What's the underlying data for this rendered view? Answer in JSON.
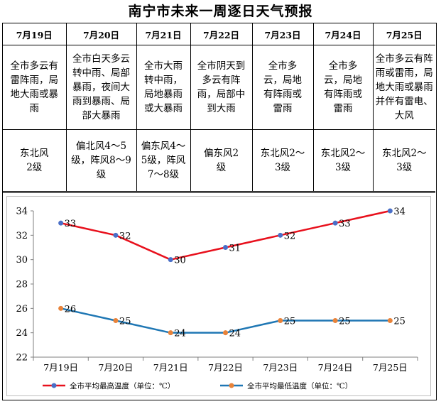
{
  "title": "南宁市未来一周逐日天气预报",
  "days": [
    {
      "date": "7月19日",
      "weather": "全市多云有雷阵雨，局地大雨或暴雨",
      "wind": "东北风2级"
    },
    {
      "date": "7月20日",
      "weather": "全市白天多云转中雨、局部暴雨，夜间大雨到暴雨、局部大暴雨",
      "wind": "偏北风4～5级，阵风8～9级"
    },
    {
      "date": "7月21日",
      "weather": "全市大雨转中雨，局地暴雨或大暴雨",
      "wind": "偏东风4～5级，阵风7～8级"
    },
    {
      "date": "7月22日",
      "weather": "全市阴天到多云有阵雨，局部中到大雨",
      "wind": "偏东风2级"
    },
    {
      "date": "7月23日",
      "weather": "全市多云，局地有阵雨或雷雨",
      "wind": "东北风2～3级"
    },
    {
      "date": "7月24日",
      "weather": "全市多云，局地有阵雨或雷雨",
      "wind": "东北风2～3级"
    },
    {
      "date": "7月25日",
      "weather": "全市多云有阵雨或雷雨，局地大雨或暴雨并伴有雷电、大风",
      "wind": "东北风2～3级"
    }
  ],
  "chart_data": {
    "type": "line",
    "categories": [
      "7月19日",
      "7月20日",
      "7月21日",
      "7月22日",
      "7月23日",
      "7月24日",
      "7月25日"
    ],
    "series": [
      {
        "name": "全市平均最高温度（单位：℃）",
        "values": [
          33,
          32,
          30,
          31,
          32,
          33,
          34
        ],
        "color": "#e8101c",
        "marker": "#4a6fc7"
      },
      {
        "name": "全市平均最低温度（单位：℃）",
        "values": [
          26,
          25,
          24,
          24,
          25,
          25,
          25
        ],
        "color": "#1f77b4",
        "marker": "#e8833a"
      }
    ],
    "ylim": [
      22,
      34
    ],
    "yticks": [
      22,
      24,
      26,
      28,
      30,
      32,
      34
    ],
    "title": "",
    "xlabel": "",
    "ylabel": "",
    "grid": false,
    "legend": "bottom"
  }
}
